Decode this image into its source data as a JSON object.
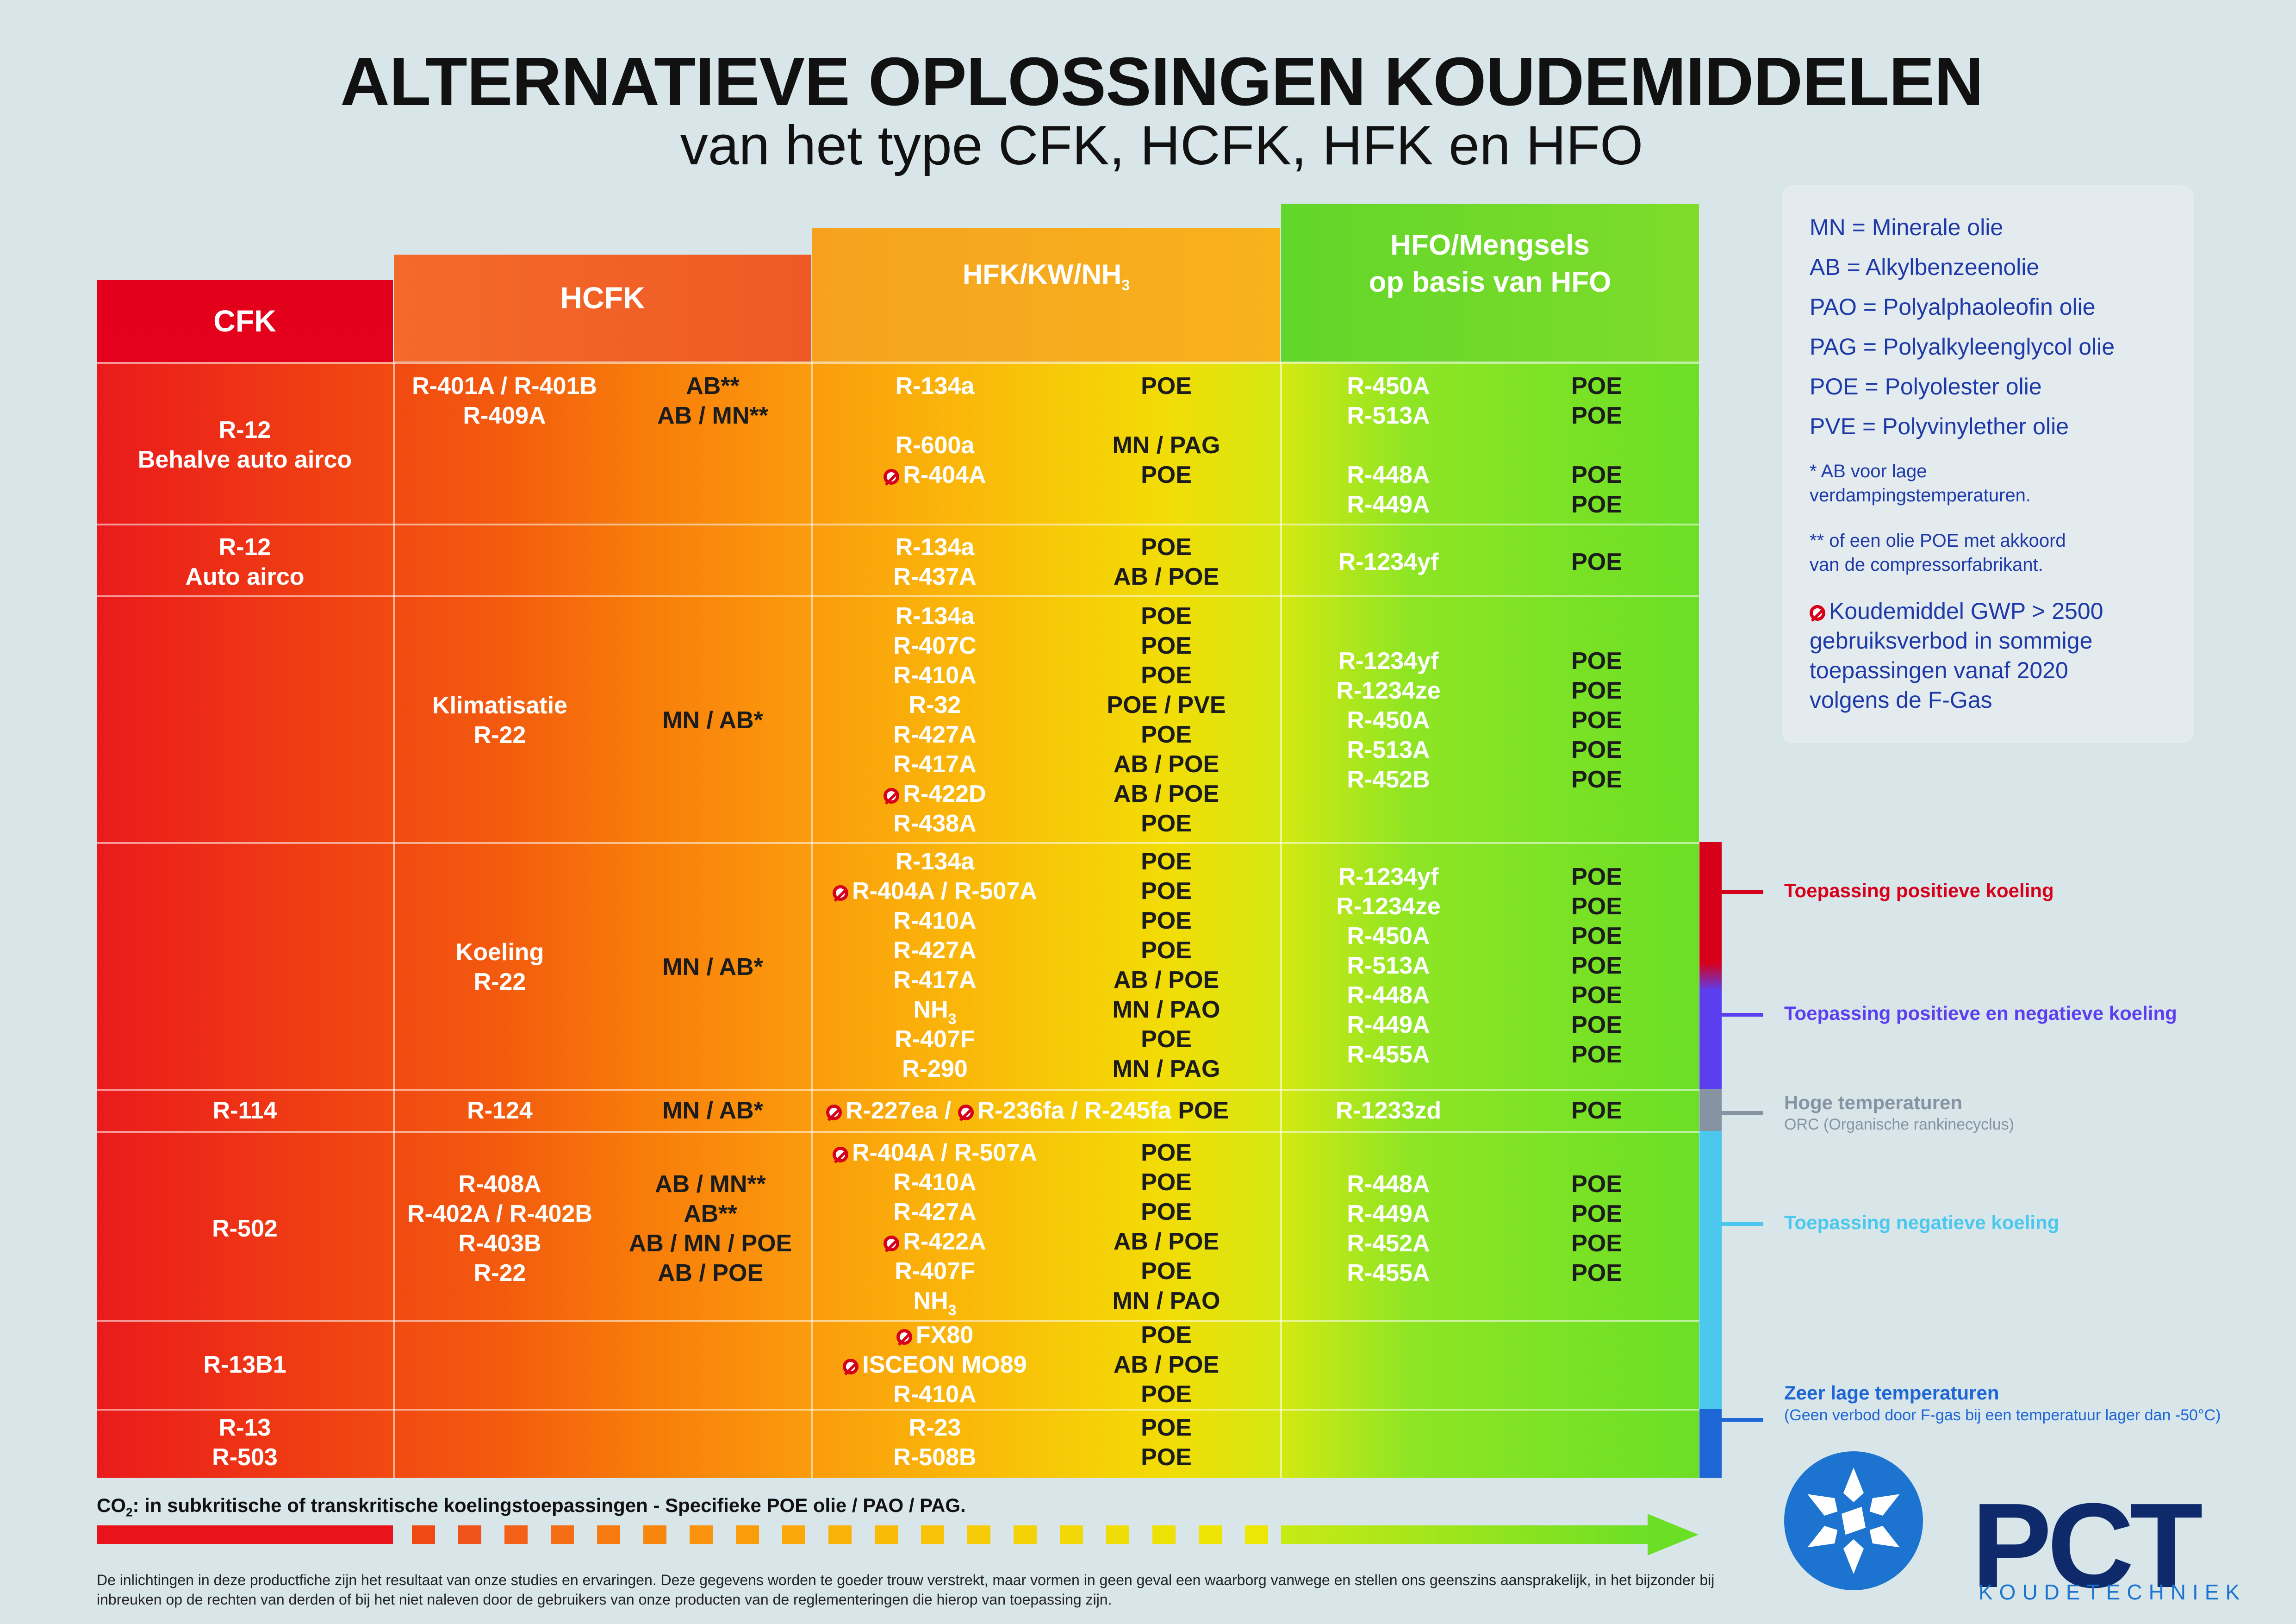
{
  "title": "ALTERNATIEVE OPLOSSINGEN KOUDEMIDDELEN",
  "subtitle": "van het type CFK, HCFK, HFK en HFO",
  "columns": {
    "cfk": "CFK",
    "hcfk": "HCFK",
    "hfk": "HFK/KW/NH",
    "hfk_sub": "3",
    "hfo_1": "HFO/Mengsels",
    "hfo_2": "op basis van HFO"
  },
  "rows": [
    {
      "cfk": [
        "R-12",
        "Behalve auto airco"
      ],
      "hcfk": [
        "R-401A / R-401B",
        "R-409A"
      ],
      "hcfk_oil": [
        "AB**",
        "AB / MN**"
      ],
      "hfk": [
        "R-134a",
        "",
        "R-600a",
        "R-404A"
      ],
      "hfk_oil": [
        "POE",
        "",
        "MN / PAG",
        "POE"
      ],
      "hfo": [
        "R-450A",
        "R-513A",
        "",
        "R-448A",
        "R-449A"
      ],
      "hfo_oil": [
        "POE",
        "POE",
        "",
        "POE",
        "POE"
      ]
    },
    {
      "cfk": [
        "R-12",
        "Auto airco"
      ],
      "hfk": [
        "R-134a",
        "R-437A"
      ],
      "hfk_oil": [
        "POE",
        "AB / POE"
      ],
      "hfo": [
        "R-1234yf"
      ],
      "hfo_oil": [
        "POE"
      ]
    },
    {
      "hcfk": [
        "Klimatisatie",
        "R-22"
      ],
      "hcfk_oil": [
        "MN / AB*"
      ],
      "hfk": [
        "R-134a",
        "R-407C",
        "R-410A",
        "R-32",
        "R-427A",
        "R-417A",
        "R-422D",
        "R-438A"
      ],
      "hfk_oil": [
        "POE",
        "POE",
        "POE",
        "POE / PVE",
        "POE",
        "AB / POE",
        "AB / POE",
        "POE"
      ],
      "hfo": [
        "R-1234yf",
        "R-1234ze",
        "R-450A",
        "R-513A",
        "R-452B"
      ],
      "hfo_oil": [
        "POE",
        "POE",
        "POE",
        "POE",
        "POE"
      ]
    },
    {
      "hcfk": [
        "Koeling",
        "R-22"
      ],
      "hcfk_oil": [
        "MN / AB*"
      ],
      "hfk": [
        "R-134a",
        "R-404A / R-507A",
        "R-410A",
        "R-427A",
        "R-417A",
        "NH",
        "R-407F",
        "R-290"
      ],
      "hfk_oil": [
        "POE",
        "POE",
        "POE",
        "POE",
        "AB / POE",
        "MN / PAO",
        "POE",
        "MN / PAG"
      ],
      "hfo": [
        "R-1234yf",
        "R-1234ze",
        "R-450A",
        "R-513A",
        "R-448A",
        "R-449A",
        "R-455A"
      ],
      "hfo_oil": [
        "POE",
        "POE",
        "POE",
        "POE",
        "POE",
        "POE",
        "POE"
      ]
    },
    {
      "cfk": [
        "R-114"
      ],
      "hcfk": [
        "R-124"
      ],
      "hcfk_oil": [
        "MN / AB*"
      ],
      "hfk_a": "R-227ea /",
      "hfk_b": "R-236fa / R-245fa",
      "hfk_oil": [
        "POE"
      ],
      "hfo": [
        "R-1233zd"
      ],
      "hfo_oil": [
        "POE"
      ]
    },
    {
      "cfk": [
        "R-502"
      ],
      "hcfk": [
        "R-408A",
        "R-402A / R-402B",
        "R-403B",
        "R-22"
      ],
      "hcfk_oil": [
        "AB / MN**",
        "AB**",
        "AB / MN / POE",
        "AB / POE"
      ],
      "hfk": [
        "R-404A / R-507A",
        "R-410A",
        "R-427A",
        "R-422A",
        "R-407F",
        "NH"
      ],
      "hfk_oil": [
        "POE",
        "POE",
        "POE",
        "AB / POE",
        "POE",
        "MN / PAO"
      ],
      "hfo": [
        "R-448A",
        "R-449A",
        "R-452A",
        "R-455A"
      ],
      "hfo_oil": [
        "POE",
        "POE",
        "POE",
        "POE"
      ]
    },
    {
      "cfk": [
        "R-13B1"
      ],
      "hfk": [
        "FX80",
        "ISCEON MO89",
        "R-410A"
      ],
      "hfk_oil": [
        "POE",
        "AB / POE",
        "POE"
      ]
    },
    {
      "cfk": [
        "R-13",
        "R-503"
      ],
      "hfk": [
        "R-23",
        "R-508B"
      ],
      "hfk_oil": [
        "POE",
        "POE"
      ]
    }
  ],
  "legend": {
    "mn": "MN = Minerale olie",
    "ab": "AB = Alkylbenzeenolie",
    "pao": "PAO = Polyalphaoleofin olie",
    "pag": "PAG = Polyalkyleenglycol olie",
    "poe": "POE = Polyolester olie",
    "pve": "PVE = Polyvinylether olie",
    "note1_a": "* AB voor lage",
    "note1_b": "verdampingstemperaturen.",
    "note2_a": "** of een olie POE met akkoord",
    "note2_b": "van de compressorfabrikant.",
    "gwp_1": "Koudemiddel GWP > 2500",
    "gwp_2": "gebruiksverbod in sommige",
    "gwp_3": "toepassingen vanaf 2020",
    "gwp_4": "volgens de F-Gas"
  },
  "applications": {
    "pos": "Toepassing positieve koeling",
    "posneg": "Toepassing positieve en negatieve koeling",
    "high": "Hoge temperaturen",
    "high_sub": "ORC (Organische rankinecyclus)",
    "neg": "Toepassing negatieve koeling",
    "vlow": "Zeer lage temperaturen",
    "vlow_sub": "(Geen verbod door F-gas bij een temperatuur lager dan -50°C)"
  },
  "colors": {
    "pos": "#d7001a",
    "posneg": "#5b3ef0",
    "high": "#8593a3",
    "neg": "#4cc7ee",
    "vlow": "#1e66d6",
    "legend_text": "#1d3aa8",
    "brand": "#0f2a6b"
  },
  "co2_pre": "CO",
  "co2_sub": "2",
  "co2_text": ": in subkritische of transkritische koelingstoepassingen - Specifieke POE olie / PAO / PAG.",
  "disclaimer": "De inlichtingen in deze productfiche zijn het resultaat van onze studies en ervaringen. Deze gegevens worden te goeder trouw verstrekt, maar vormen in geen geval een waarborg vanwege en stellen ons geenszins aansprakelijk, in het bijzonder bij inbreuken op de rechten van derden of bij het niet naleven door de gebruikers van onze producten van de reglementeringen die hierop van toepassing zijn.",
  "brand": "PCT",
  "brand_sub": "KOUDETECHNIEK"
}
